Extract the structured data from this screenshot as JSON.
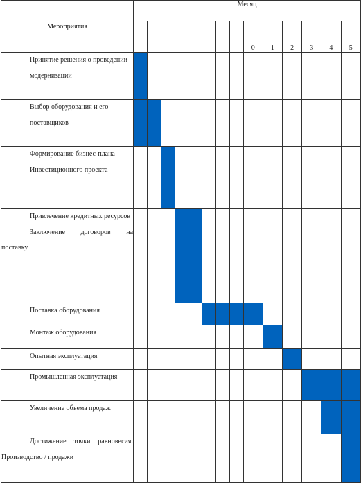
{
  "header": {
    "task_column_title": "Мероприятия",
    "month_group_title": "Месяц",
    "month_numbers": [
      "",
      "",
      "",
      "",
      "",
      "",
      "",
      "",
      "0",
      "1",
      "2",
      "3",
      "4",
      "5"
    ]
  },
  "rows": [
    {
      "lines": [
        "Принятие решения о проведении",
        "модернизации"
      ],
      "filled": [
        0
      ]
    },
    {
      "lines": [
        "Выбор оборудования и его",
        "поставщиков"
      ],
      "filled": [
        0,
        1
      ]
    },
    {
      "lines": [
        "Формирование бизнес-плана",
        "Инвестиционного проекта"
      ],
      "filled": [
        2
      ]
    },
    {
      "lines": [
        "Привлечение кредитных ресурсов",
        "Заключение договоров на поставку"
      ],
      "filled": [
        3,
        4
      ]
    },
    {
      "lines": [
        "Поставка оборудования"
      ],
      "filled": [
        5,
        6,
        7,
        8
      ]
    },
    {
      "lines": [
        "Монтаж оборудования"
      ],
      "filled": [
        9
      ]
    },
    {
      "lines": [
        "Опытная эксплуатация"
      ],
      "filled": [
        10
      ]
    },
    {
      "lines": [
        "Промышленная эксплуатация"
      ],
      "filled": [
        11,
        12,
        13
      ]
    },
    {
      "lines": [
        "Увеличение объема продаж"
      ],
      "filled": [
        12,
        13
      ]
    },
    {
      "lines": [
        "Достижение точки равновесия. Производство / продажи"
      ],
      "filled": [
        13
      ]
    }
  ],
  "colors": {
    "bar": "#0063bd",
    "grid": "#333333"
  }
}
